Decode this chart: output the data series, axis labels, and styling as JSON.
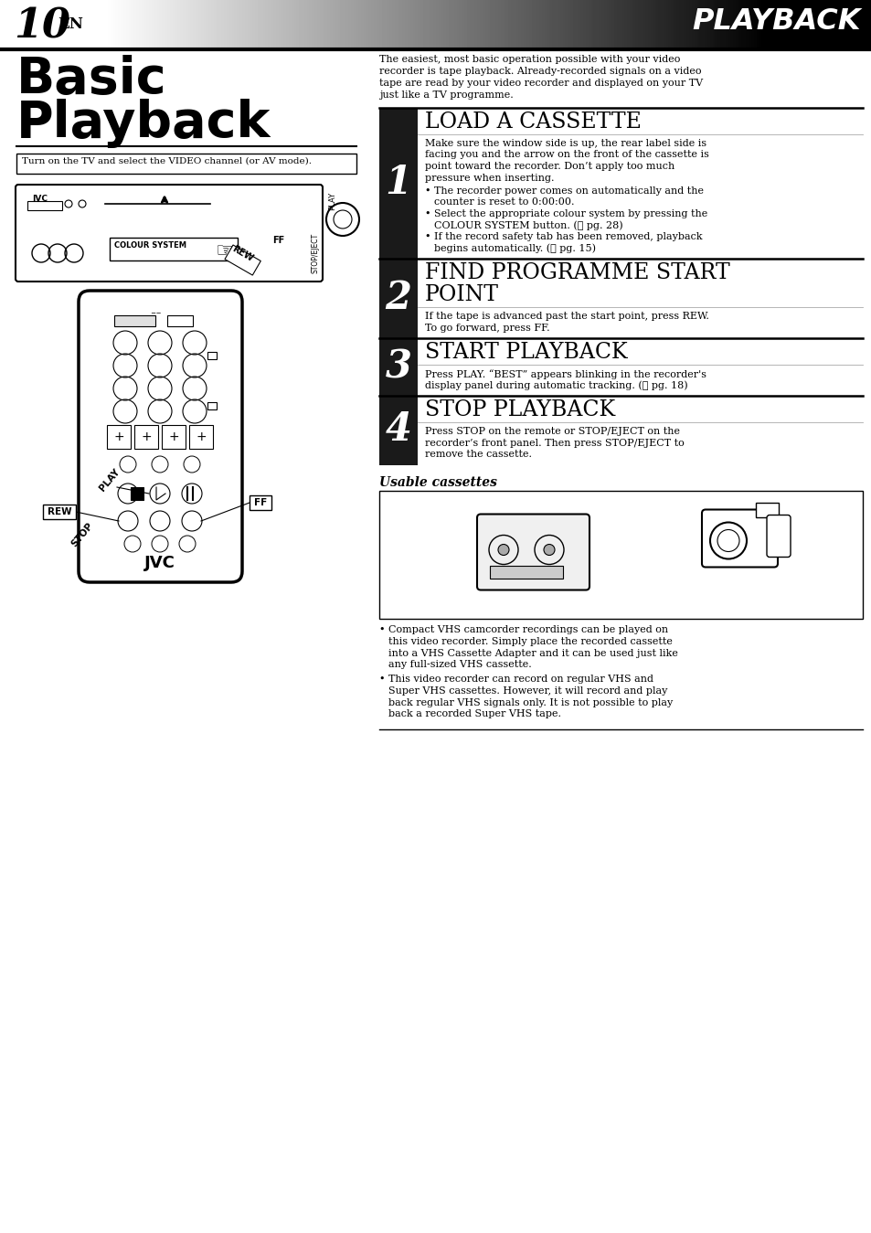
{
  "page_number": "10",
  "page_number_sub": "EN",
  "header_title": "PLAYBACK",
  "section_title_line1": "Basic",
  "section_title_line2": "Playback",
  "prereq_box": "Turn on the TV and select the VIDEO channel (or AV mode).",
  "intro_text_lines": [
    "The easiest, most basic operation possible with your video",
    "recorder is tape playback. Already-recorded signals on a video",
    "tape are read by your video recorder and displayed on your TV",
    "just like a TV programme."
  ],
  "steps": [
    {
      "number": "1",
      "title_lines": [
        "LOAD A CASSETTE"
      ],
      "body_lines": [
        "Make sure the window side is up, the rear label side is",
        "facing you and the arrow on the front of the cassette is",
        "point toward the recorder. Don’t apply too much",
        "pressure when inserting."
      ],
      "bullets": [
        [
          "The recorder power comes on automatically and the",
          "counter is reset to 0:00:00."
        ],
        [
          "Select the appropriate colour system by pressing the",
          "COLOUR SYSTEM button. (⚓ pg. 28)"
        ],
        [
          "If the record safety tab has been removed, playback",
          "begins automatically. (⚓ pg. 15)"
        ]
      ]
    },
    {
      "number": "2",
      "title_lines": [
        "FIND PROGRAMME START",
        "POINT"
      ],
      "body_lines": [
        "If the tape is advanced past the start point, press REW.",
        "To go forward, press FF."
      ],
      "bullets": []
    },
    {
      "number": "3",
      "title_lines": [
        "START PLAYBACK"
      ],
      "body_lines": [
        "Press PLAY. “BEST” appears blinking in the recorder's",
        "display panel during automatic tracking. (⚓ pg. 18)"
      ],
      "bullets": []
    },
    {
      "number": "4",
      "title_lines": [
        "STOP PLAYBACK"
      ],
      "body_lines": [
        "Press STOP on the remote or STOP/EJECT on the",
        "recorder’s front panel. Then press STOP/EJECT to",
        "remove the cassette."
      ],
      "bullets": []
    }
  ],
  "usable_cassettes_title": "Usable cassettes",
  "usable_cassettes_bullets": [
    [
      "Compact VHS camcorder recordings can be played on",
      "this video recorder. Simply place the recorded cassette",
      "into a VHS Cassette Adapter and it can be used just like",
      "any full-sized VHS cassette."
    ],
    [
      "This video recorder can record on regular VHS and",
      "Super VHS cassettes. However, it will record and play",
      "back regular VHS signals only. It is not possible to play",
      "back a recorded Super VHS tape."
    ]
  ],
  "bg_color": "#ffffff",
  "text_color": "#000000",
  "step_number_bg": "#1a1a1a",
  "step_number_fg": "#ffffff"
}
